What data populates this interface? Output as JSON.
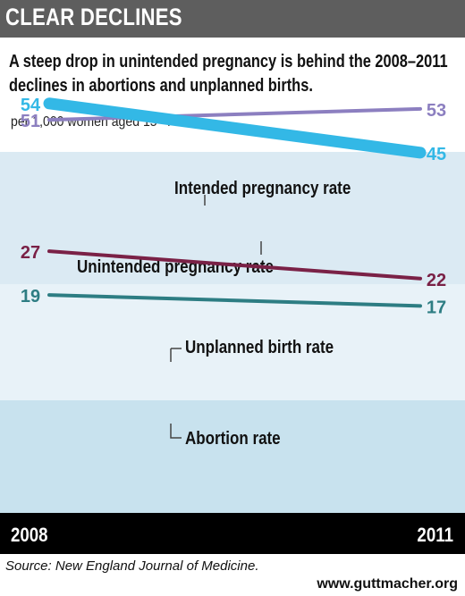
{
  "banner": {
    "title": "CLEAR DECLINES"
  },
  "colors": {
    "banner_bg": "#5e5e5e",
    "panel_top": "#dbeaf3",
    "panel_mid": "#e8f2f8",
    "panel_bottom": "#c8e2ee",
    "footer_bg": "#000000",
    "intended": "#8c7fc0",
    "unintended": "#33b8e6",
    "unplanned_birth": "#7a2146",
    "abortion": "#2d7d83"
  },
  "chart_data": {
    "type": "line",
    "title": "A steep drop in unintended pregnancy is behind the 2008–2011 declines in abortions and unplanned births.",
    "ylabel": "per 1,000 women aged 15–44",
    "categories": [
      "2008",
      "2011"
    ],
    "series": [
      {
        "name": "Intended pregnancy rate",
        "values": [
          51,
          53
        ],
        "labels": [
          "51",
          "53"
        ],
        "color": "#8c7fc0",
        "thick": false
      },
      {
        "name": "Unintended pregnancy rate",
        "values": [
          54,
          45
        ],
        "labels": [
          "54",
          "45"
        ],
        "color": "#33b8e6",
        "thick": true
      },
      {
        "name": "Unplanned birth rate",
        "values": [
          27,
          22
        ],
        "labels": [
          "27",
          "22"
        ],
        "color": "#7a2146",
        "thick": false
      },
      {
        "name": "Abortion rate",
        "values": [
          19,
          17
        ],
        "labels": [
          "19",
          "17"
        ],
        "color": "#2d7d83",
        "thick": false
      }
    ]
  },
  "footer": {
    "source": "Source: New England Journal of Medicine.",
    "website": "www.guttmacher.org"
  }
}
